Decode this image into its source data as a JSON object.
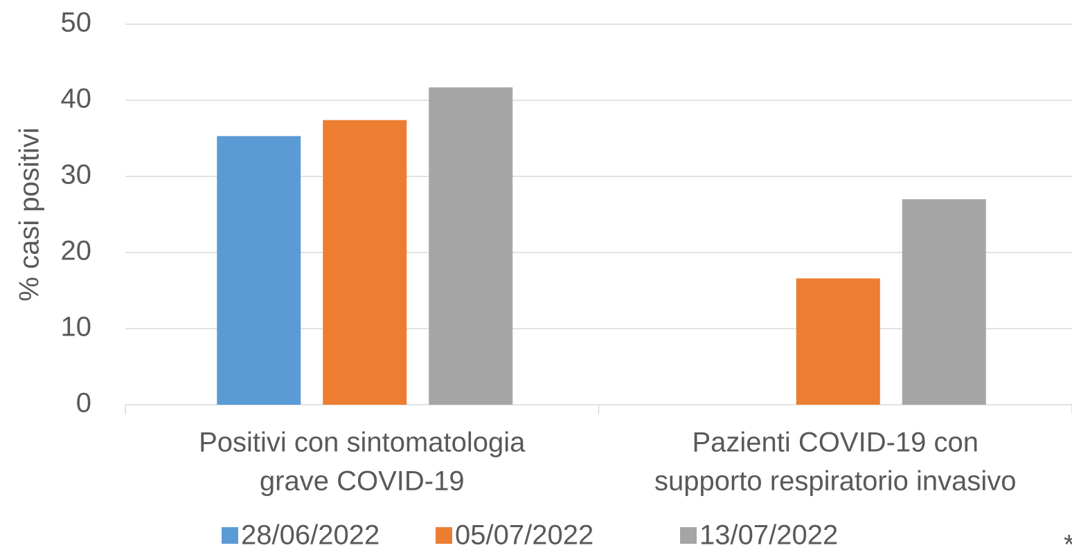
{
  "chart_data": {
    "type": "bar",
    "y_label": "% casi positivi",
    "categories": [
      [
        "Positivi con sintomatologia",
        "grave COVID-19"
      ],
      [
        "Pazienti COVID-19 con",
        "supporto respiratorio invasivo"
      ]
    ],
    "series": [
      {
        "name": "28/06/2022",
        "color": "#5b9bd5",
        "values": [
          35.3,
          null
        ]
      },
      {
        "name": "05/07/2022",
        "color": "#ed7d31",
        "values": [
          37.4,
          16.6
        ]
      },
      {
        "name": "13/07/2022",
        "color": "#a5a5a5",
        "values": [
          41.7,
          27.0
        ]
      }
    ],
    "ylim": [
      0,
      50
    ],
    "yticks": [
      0,
      10,
      20,
      30,
      40,
      50
    ],
    "grid": true,
    "legend": "bottom",
    "note": "*"
  }
}
